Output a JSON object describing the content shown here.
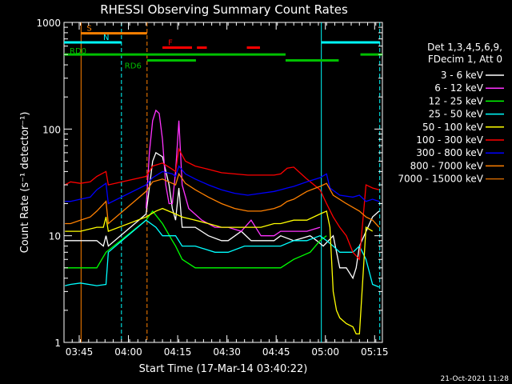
{
  "chart_data": {
    "type": "line",
    "title": "RHESSI Observing Summary Count Rates",
    "xlabel": "Start Time (17-Mar-14 03:40:22)",
    "ylabel": "Count Rate (s⁻¹ detector⁻¹)",
    "yscale": "log",
    "ylim": [
      1,
      1000
    ],
    "xlim_minutes": [
      0,
      97
    ],
    "y_ticks": [
      {
        "value": 1,
        "label": "1"
      },
      {
        "value": 10,
        "label": "10"
      },
      {
        "value": 100,
        "label": "100"
      },
      {
        "value": 1000,
        "label": "1000"
      }
    ],
    "x_ticks": [
      {
        "minute": 4.63,
        "label": "03:45"
      },
      {
        "minute": 19.63,
        "label": "04:00"
      },
      {
        "minute": 34.63,
        "label": "04:15"
      },
      {
        "minute": 49.63,
        "label": "04:30"
      },
      {
        "minute": 64.63,
        "label": "04:45"
      },
      {
        "minute": 79.63,
        "label": "05:00"
      },
      {
        "minute": 94.63,
        "label": "05:15"
      }
    ],
    "legend_header": [
      "Det 1,3,4,5,6,9,",
      "FDecim 1, Att 0"
    ],
    "legend_position": "right",
    "series": [
      {
        "name": "3 - 6 keV",
        "color": "#ffffff",
        "points": [
          [
            0.3,
            9
          ],
          [
            5,
            9
          ],
          [
            10,
            9
          ],
          [
            12,
            8
          ],
          [
            12.8,
            10
          ],
          [
            13.5,
            8
          ],
          [
            25,
            16
          ],
          [
            27,
            50
          ],
          [
            28,
            60
          ],
          [
            30,
            55
          ],
          [
            32,
            30
          ],
          [
            33,
            18
          ],
          [
            34,
            14
          ],
          [
            35,
            28
          ],
          [
            36,
            12
          ],
          [
            40,
            12
          ],
          [
            44,
            10
          ],
          [
            48,
            9
          ],
          [
            50,
            9
          ],
          [
            54,
            11
          ],
          [
            57,
            9
          ],
          [
            60,
            9
          ],
          [
            62,
            9
          ],
          [
            64,
            9
          ],
          [
            66,
            10
          ],
          [
            70,
            9
          ],
          [
            75,
            10
          ],
          [
            77,
            9
          ],
          [
            79,
            8
          ],
          [
            82,
            10
          ],
          [
            84,
            5
          ],
          [
            86,
            5
          ],
          [
            88,
            4
          ],
          [
            89,
            5
          ],
          [
            90,
            8
          ],
          [
            94,
            15
          ],
          [
            96,
            17
          ]
        ]
      },
      {
        "name": "6 - 12 keV",
        "color": "#ff33ff",
        "points": [
          [
            25,
            18
          ],
          [
            26,
            60
          ],
          [
            27,
            120
          ],
          [
            28,
            150
          ],
          [
            29,
            140
          ],
          [
            30,
            80
          ],
          [
            31,
            30
          ],
          [
            32,
            20
          ],
          [
            33,
            20
          ],
          [
            34,
            40
          ],
          [
            35,
            120
          ],
          [
            36,
            30
          ],
          [
            38,
            18
          ],
          [
            42,
            14
          ],
          [
            46,
            12
          ],
          [
            50,
            12
          ],
          [
            54,
            11
          ],
          [
            57,
            14
          ],
          [
            60,
            10
          ],
          [
            64,
            10
          ],
          [
            66,
            11
          ],
          [
            70,
            11
          ],
          [
            74,
            11
          ],
          [
            78,
            12
          ]
        ]
      },
      {
        "name": "12 - 25 keV",
        "color": "#00ff00",
        "points": [
          [
            0.3,
            5
          ],
          [
            5,
            5
          ],
          [
            10,
            5
          ],
          [
            12.8,
            7
          ],
          [
            25,
            14
          ],
          [
            27,
            17
          ],
          [
            30,
            13
          ],
          [
            33,
            9
          ],
          [
            34,
            8
          ],
          [
            36,
            6
          ],
          [
            40,
            5
          ],
          [
            50,
            5
          ],
          [
            60,
            5
          ],
          [
            64,
            5
          ],
          [
            66,
            5
          ],
          [
            70,
            6
          ],
          [
            75,
            7
          ],
          [
            78,
            9
          ],
          [
            80,
            10
          ]
        ]
      },
      {
        "name": "25 - 50 keV",
        "color": "#00ffff",
        "points": [
          [
            0.3,
            3.4
          ],
          [
            2,
            3.5
          ],
          [
            5,
            3.6
          ],
          [
            10,
            3.4
          ],
          [
            12.8,
            3.5
          ],
          [
            13.5,
            7
          ],
          [
            25,
            14
          ],
          [
            28,
            12
          ],
          [
            30,
            10
          ],
          [
            34,
            10
          ],
          [
            36,
            8
          ],
          [
            40,
            8
          ],
          [
            46,
            7
          ],
          [
            50,
            7
          ],
          [
            55,
            8
          ],
          [
            60,
            8
          ],
          [
            64,
            8
          ],
          [
            66,
            8
          ],
          [
            70,
            9
          ],
          [
            74,
            9
          ],
          [
            78,
            10
          ],
          [
            80,
            9
          ],
          [
            82,
            8
          ],
          [
            84,
            7
          ],
          [
            86,
            7
          ],
          [
            88,
            7
          ],
          [
            90,
            8
          ],
          [
            92,
            6
          ],
          [
            94,
            3.5
          ],
          [
            95,
            3.4
          ],
          [
            96,
            3.3
          ]
        ]
      },
      {
        "name": "50 - 100 keV",
        "color": "#ffff00",
        "points": [
          [
            0.3,
            11
          ],
          [
            5,
            11
          ],
          [
            10,
            12
          ],
          [
            12,
            12
          ],
          [
            12.8,
            15
          ],
          [
            13.5,
            11
          ],
          [
            25,
            15
          ],
          [
            28,
            17
          ],
          [
            30,
            18
          ],
          [
            34,
            16
          ],
          [
            36,
            15
          ],
          [
            40,
            14
          ],
          [
            44,
            13
          ],
          [
            48,
            12
          ],
          [
            50,
            12
          ],
          [
            55,
            12
          ],
          [
            60,
            12
          ],
          [
            64,
            13
          ],
          [
            66,
            13
          ],
          [
            70,
            14
          ],
          [
            74,
            14
          ],
          [
            78,
            16
          ],
          [
            80,
            17
          ],
          [
            81,
            12
          ],
          [
            82,
            3
          ],
          [
            83,
            2
          ],
          [
            84,
            1.7
          ],
          [
            86,
            1.5
          ],
          [
            88,
            1.4
          ],
          [
            89,
            1.2
          ],
          [
            90,
            1.2
          ],
          [
            92,
            12
          ],
          [
            94,
            11
          ]
        ]
      },
      {
        "name": "100 - 300 keV",
        "color": "#ff0000",
        "points": [
          [
            0.3,
            30
          ],
          [
            2,
            32
          ],
          [
            5,
            31
          ],
          [
            8,
            32
          ],
          [
            10,
            36
          ],
          [
            12.8,
            40
          ],
          [
            13.5,
            30
          ],
          [
            25,
            36
          ],
          [
            27,
            45
          ],
          [
            30,
            48
          ],
          [
            33,
            42
          ],
          [
            34,
            40
          ],
          [
            35,
            65
          ],
          [
            37,
            50
          ],
          [
            40,
            45
          ],
          [
            44,
            42
          ],
          [
            48,
            39
          ],
          [
            52,
            38
          ],
          [
            56,
            37
          ],
          [
            60,
            37
          ],
          [
            64,
            37
          ],
          [
            66,
            38
          ],
          [
            68,
            43
          ],
          [
            70,
            44
          ],
          [
            74,
            34
          ],
          [
            78,
            27
          ],
          [
            80,
            20
          ],
          [
            82,
            15
          ],
          [
            84,
            12
          ],
          [
            86,
            10
          ],
          [
            88,
            7
          ],
          [
            90,
            6
          ],
          [
            92,
            30
          ],
          [
            94,
            28
          ],
          [
            96,
            27
          ]
        ]
      },
      {
        "name": "300 - 800 keV",
        "color": "#0000ff",
        "points": [
          [
            0.3,
            21
          ],
          [
            2,
            21
          ],
          [
            5,
            22
          ],
          [
            8,
            23
          ],
          [
            10,
            27
          ],
          [
            12.8,
            31
          ],
          [
            13.5,
            20
          ],
          [
            25,
            30
          ],
          [
            27,
            35
          ],
          [
            30,
            40
          ],
          [
            33,
            38
          ],
          [
            34,
            36
          ],
          [
            35,
            45
          ],
          [
            37,
            38
          ],
          [
            40,
            34
          ],
          [
            44,
            30
          ],
          [
            48,
            27
          ],
          [
            52,
            25
          ],
          [
            56,
            24
          ],
          [
            60,
            25
          ],
          [
            64,
            26
          ],
          [
            66,
            27
          ],
          [
            68,
            28
          ],
          [
            70,
            29
          ],
          [
            74,
            32
          ],
          [
            78,
            35
          ],
          [
            80,
            38
          ],
          [
            81,
            28
          ],
          [
            84,
            24
          ],
          [
            88,
            23
          ],
          [
            90,
            24
          ],
          [
            92,
            21
          ],
          [
            94,
            22
          ],
          [
            96,
            21
          ]
        ]
      },
      {
        "name": "800 - 7000 keV",
        "color": "#ff8000",
        "points": [
          [
            0.3,
            13
          ],
          [
            2,
            13
          ],
          [
            5,
            14
          ],
          [
            8,
            15
          ],
          [
            10,
            17
          ],
          [
            12.8,
            21
          ],
          [
            13.5,
            13
          ],
          [
            25,
            26
          ],
          [
            27,
            32
          ],
          [
            30,
            34
          ],
          [
            33,
            31
          ],
          [
            34,
            30
          ],
          [
            35,
            38
          ],
          [
            37,
            31
          ],
          [
            40,
            27
          ],
          [
            44,
            23
          ],
          [
            48,
            20
          ],
          [
            52,
            18
          ],
          [
            56,
            17
          ],
          [
            60,
            17
          ],
          [
            64,
            18
          ],
          [
            66,
            19
          ],
          [
            68,
            21
          ],
          [
            70,
            22
          ],
          [
            74,
            26
          ],
          [
            78,
            29
          ],
          [
            80,
            31
          ],
          [
            82,
            24
          ],
          [
            86,
            20
          ],
          [
            90,
            17
          ],
          [
            92,
            15
          ],
          [
            94,
            14
          ],
          [
            96,
            12
          ]
        ]
      },
      {
        "name": "7000 - 15000 keV",
        "color": "#cc6600",
        "points": []
      }
    ],
    "vertical_markers": [
      {
        "minute": 5.2,
        "color": "#ff8000",
        "style": "solid"
      },
      {
        "minute": 17.5,
        "color": "#00ffff",
        "style": "dashed"
      },
      {
        "minute": 25.3,
        "color": "#ff8000",
        "style": "dashed"
      },
      {
        "minute": 78.4,
        "color": "#00ffff",
        "style": "solid"
      },
      {
        "minute": 96.2,
        "color": "#00ffff",
        "style": "dashed"
      }
    ],
    "flag_bars": [
      {
        "label": "S",
        "color": "#ff8000",
        "start": 5.2,
        "end": 25.3,
        "level": 790
      },
      {
        "label": "N",
        "color": "#00ffff",
        "start": 0,
        "end": 17.5,
        "level": 650
      },
      {
        "label": "",
        "color": "#00ffff",
        "start": 78.4,
        "end": 96.2,
        "level": 650
      },
      {
        "label": "F",
        "color": "#ff0000",
        "start": 30,
        "end": 39,
        "level": 580
      },
      {
        "label": "",
        "color": "#ff0000",
        "start": 40.5,
        "end": 43.5,
        "level": 580
      },
      {
        "label": "",
        "color": "#ff0000",
        "start": 55.7,
        "end": 59.7,
        "level": 580
      },
      {
        "label": "RD0",
        "color": "#00c000",
        "start": 0,
        "end": 67.5,
        "level": 500
      },
      {
        "label": "",
        "color": "#00c000",
        "start": 90.3,
        "end": 97,
        "level": 500
      },
      {
        "label": "RD6",
        "color": "#00c000",
        "start": 25.3,
        "end": 40.2,
        "level": 440
      },
      {
        "label": "",
        "color": "#00c000",
        "start": 67.5,
        "end": 83.7,
        "level": 440
      }
    ],
    "timestamp": "21-Oct-2021 11:28"
  }
}
